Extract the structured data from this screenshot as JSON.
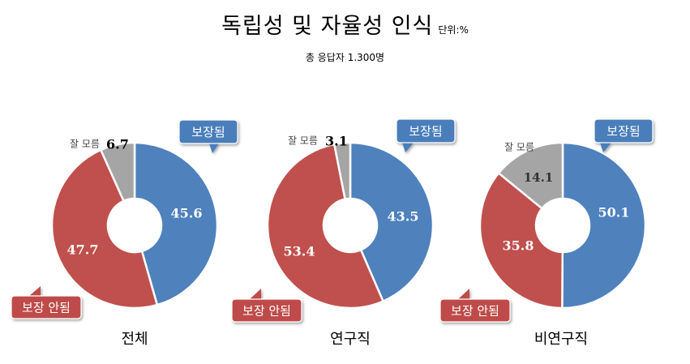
{
  "header": {
    "title": "독립성 및 자율성 인식",
    "unit": "단위:%",
    "subtitle": "총 응답자 1.300명"
  },
  "labels": {
    "secured": "보장됨",
    "not_secured": "보장 안됨",
    "dont_know": "잘 모름"
  },
  "colors": {
    "secured": "#4F81BD",
    "not_secured": "#C0504D",
    "dont_know": "#A5A5A5",
    "secured_callout": "#4A7EBB",
    "not_secured_callout": "#BE4B48"
  },
  "chart_data": [
    {
      "type": "pie",
      "name": "전체",
      "categories": [
        "보장됨",
        "보장 안됨",
        "잘 모름"
      ],
      "values": [
        45.6,
        47.7,
        6.7
      ],
      "value_labels": [
        "45.6",
        "47.7",
        "6.7"
      ]
    },
    {
      "type": "pie",
      "name": "연구직",
      "categories": [
        "보장됨",
        "보장 안됨",
        "잘 모름"
      ],
      "values": [
        43.5,
        53.4,
        3.1
      ],
      "value_labels": [
        "43.5",
        "53.4",
        "3.1"
      ]
    },
    {
      "type": "pie",
      "name": "비연구직",
      "categories": [
        "보장됨",
        "보장 안됨",
        "잘 모름"
      ],
      "values": [
        50.1,
        35.8,
        14.1
      ],
      "value_labels": [
        "50.1",
        "35.8",
        "14.1"
      ]
    }
  ]
}
